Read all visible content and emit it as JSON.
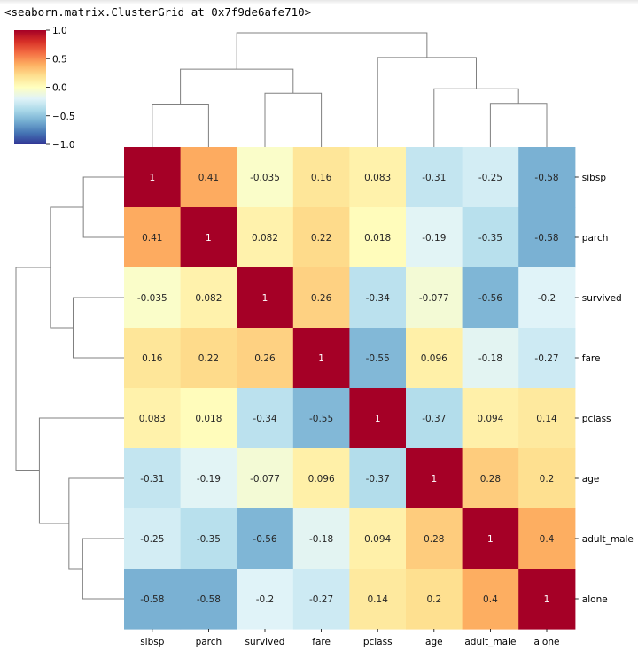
{
  "repr_text": "<seaborn.matrix.ClusterGrid at 0x7f9de6afe710>",
  "chart_data": {
    "type": "heatmap",
    "title": "",
    "colormap": "RdYlBu_r",
    "vmin": -1.0,
    "vmax": 1.0,
    "colorbar_ticks": [
      1.0,
      0.5,
      0.0,
      -0.5,
      -1.0
    ],
    "colorbar_tick_labels": [
      "1.0",
      "0.5",
      "0.0",
      "−0.5",
      "−1.0"
    ],
    "row_labels": [
      "sibsp",
      "parch",
      "survived",
      "fare",
      "pclass",
      "age",
      "adult_male",
      "alone"
    ],
    "col_labels": [
      "sibsp",
      "parch",
      "survived",
      "fare",
      "pclass",
      "age",
      "adult_male",
      "alone"
    ],
    "values": [
      [
        1,
        0.41,
        -0.035,
        0.16,
        0.083,
        -0.31,
        -0.25,
        -0.58
      ],
      [
        0.41,
        1,
        0.082,
        0.22,
        0.018,
        -0.19,
        -0.35,
        -0.58
      ],
      [
        -0.035,
        0.082,
        1,
        0.26,
        -0.34,
        -0.077,
        -0.56,
        -0.2
      ],
      [
        0.16,
        0.22,
        0.26,
        1,
        -0.55,
        0.096,
        -0.18,
        -0.27
      ],
      [
        0.083,
        0.018,
        -0.34,
        -0.55,
        1,
        -0.37,
        0.094,
        0.14
      ],
      [
        -0.31,
        -0.19,
        -0.077,
        0.096,
        -0.37,
        1,
        0.28,
        0.2
      ],
      [
        -0.25,
        -0.35,
        -0.56,
        -0.18,
        0.094,
        0.28,
        1,
        0.4
      ],
      [
        -0.58,
        -0.58,
        -0.2,
        -0.27,
        0.14,
        0.2,
        0.4,
        1
      ]
    ],
    "annotations": [
      [
        "1",
        "0.41",
        "-0.035",
        "0.16",
        "0.083",
        "-0.31",
        "-0.25",
        "-0.58"
      ],
      [
        "0.41",
        "1",
        "0.082",
        "0.22",
        "0.018",
        "-0.19",
        "-0.35",
        "-0.58"
      ],
      [
        "-0.035",
        "0.082",
        "1",
        "0.26",
        "-0.34",
        "-0.077",
        "-0.56",
        "-0.2"
      ],
      [
        "0.16",
        "0.22",
        "0.26",
        "1",
        "-0.55",
        "0.096",
        "-0.18",
        "-0.27"
      ],
      [
        "0.083",
        "0.018",
        "-0.34",
        "-0.55",
        "1",
        "-0.37",
        "0.094",
        "0.14"
      ],
      [
        "-0.31",
        "-0.19",
        "-0.077",
        "0.096",
        "-0.37",
        "1",
        "0.28",
        "0.2"
      ],
      [
        "-0.25",
        "-0.35",
        "-0.56",
        "-0.18",
        "0.094",
        "0.28",
        "1",
        "0.4"
      ],
      [
        "-0.58",
        "-0.58",
        "-0.2",
        "-0.27",
        "0.14",
        "0.2",
        "0.4",
        "1"
      ]
    ],
    "dendrogram_linkage": [
      {
        "a": 0,
        "b": 1,
        "height": 0.59
      },
      {
        "a": 2,
        "b": 3,
        "height": 0.74
      },
      {
        "a": 8,
        "b": 9,
        "height": 1.07
      },
      {
        "a": 6,
        "b": 7,
        "height": 0.6
      },
      {
        "a": 5,
        "b": 11,
        "height": 0.8
      },
      {
        "a": 4,
        "b": 12,
        "height": 1.23
      },
      {
        "a": 10,
        "b": 13,
        "height": 1.57
      }
    ],
    "leaf_order": [
      0,
      1,
      2,
      3,
      4,
      5,
      6,
      7
    ],
    "colors": {
      "tree_line": "#808080",
      "text_dark": "#262626",
      "text_light": "#ffffff"
    }
  }
}
